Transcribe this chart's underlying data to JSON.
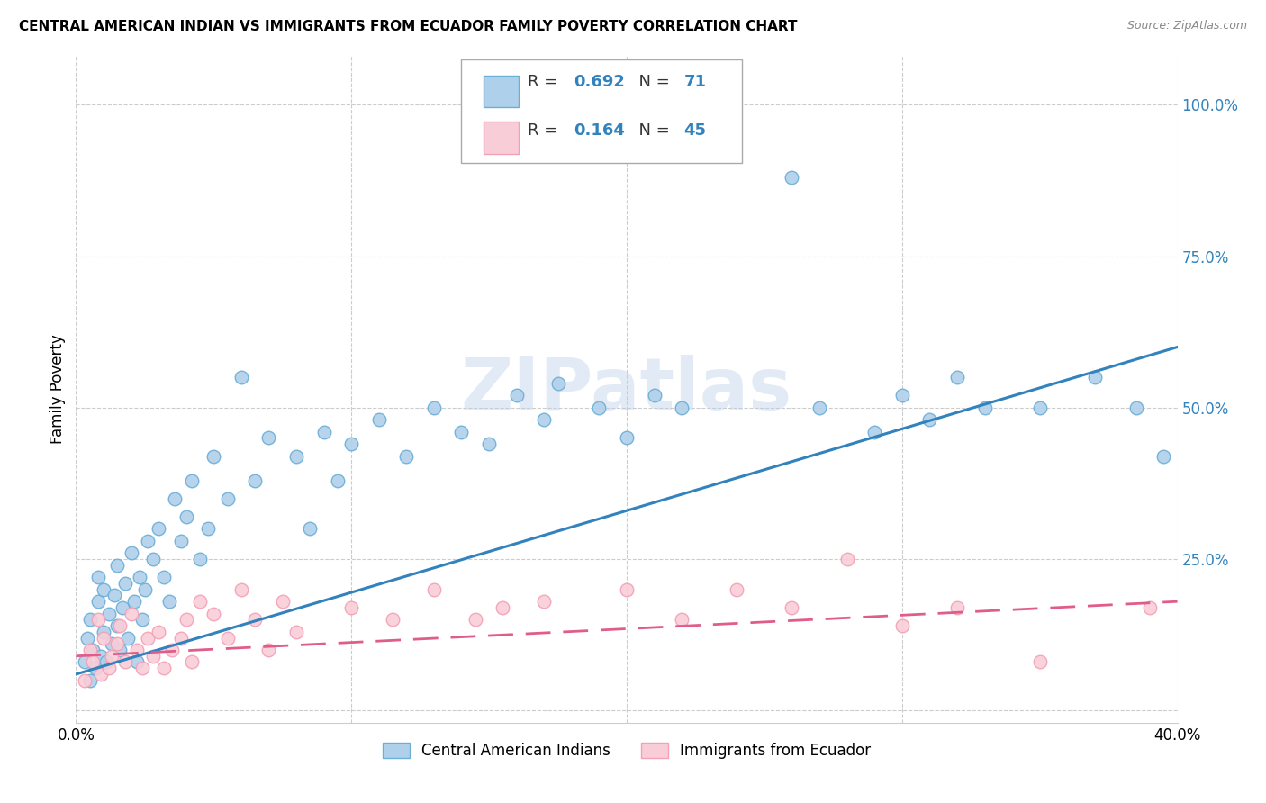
{
  "title": "CENTRAL AMERICAN INDIAN VS IMMIGRANTS FROM ECUADOR FAMILY POVERTY CORRELATION CHART",
  "source": "Source: ZipAtlas.com",
  "ylabel": "Family Poverty",
  "xlim": [
    0.0,
    0.4
  ],
  "ylim": [
    -0.02,
    1.08
  ],
  "blue_color": "#6baed6",
  "blue_fill": "#afd0ea",
  "pink_color": "#f4a0b5",
  "pink_fill": "#f9cdd8",
  "line_blue": "#3182bd",
  "line_pink": "#e05c8a",
  "R_blue": 0.692,
  "N_blue": 71,
  "R_pink": 0.164,
  "N_pink": 45,
  "legend_label_blue": "Central American Indians",
  "legend_label_pink": "Immigrants from Ecuador",
  "watermark": "ZIPatlas",
  "background_color": "#ffffff",
  "grid_color": "#cccccc",
  "blue_x": [
    0.003,
    0.004,
    0.005,
    0.005,
    0.006,
    0.007,
    0.008,
    0.008,
    0.009,
    0.01,
    0.01,
    0.011,
    0.012,
    0.013,
    0.014,
    0.015,
    0.015,
    0.016,
    0.017,
    0.018,
    0.019,
    0.02,
    0.021,
    0.022,
    0.023,
    0.024,
    0.025,
    0.026,
    0.028,
    0.03,
    0.032,
    0.034,
    0.036,
    0.038,
    0.04,
    0.042,
    0.045,
    0.048,
    0.05,
    0.055,
    0.06,
    0.065,
    0.07,
    0.08,
    0.085,
    0.09,
    0.095,
    0.1,
    0.11,
    0.12,
    0.13,
    0.14,
    0.15,
    0.16,
    0.17,
    0.175,
    0.19,
    0.2,
    0.21,
    0.22,
    0.26,
    0.27,
    0.29,
    0.3,
    0.31,
    0.32,
    0.33,
    0.35,
    0.37,
    0.385,
    0.395
  ],
  "blue_y": [
    0.08,
    0.12,
    0.05,
    0.15,
    0.1,
    0.07,
    0.18,
    0.22,
    0.09,
    0.13,
    0.2,
    0.08,
    0.16,
    0.11,
    0.19,
    0.14,
    0.24,
    0.1,
    0.17,
    0.21,
    0.12,
    0.26,
    0.18,
    0.08,
    0.22,
    0.15,
    0.2,
    0.28,
    0.25,
    0.3,
    0.22,
    0.18,
    0.35,
    0.28,
    0.32,
    0.38,
    0.25,
    0.3,
    0.42,
    0.35,
    0.55,
    0.38,
    0.45,
    0.42,
    0.3,
    0.46,
    0.38,
    0.44,
    0.48,
    0.42,
    0.5,
    0.46,
    0.44,
    0.52,
    0.48,
    0.54,
    0.5,
    0.45,
    0.52,
    0.5,
    0.88,
    0.5,
    0.46,
    0.52,
    0.48,
    0.55,
    0.5,
    0.5,
    0.55,
    0.5,
    0.42
  ],
  "pink_x": [
    0.003,
    0.005,
    0.006,
    0.008,
    0.009,
    0.01,
    0.012,
    0.013,
    0.015,
    0.016,
    0.018,
    0.02,
    0.022,
    0.024,
    0.026,
    0.028,
    0.03,
    0.032,
    0.035,
    0.038,
    0.04,
    0.042,
    0.045,
    0.05,
    0.055,
    0.06,
    0.065,
    0.07,
    0.075,
    0.08,
    0.1,
    0.115,
    0.13,
    0.145,
    0.155,
    0.17,
    0.2,
    0.22,
    0.24,
    0.26,
    0.28,
    0.3,
    0.32,
    0.35,
    0.39
  ],
  "pink_y": [
    0.05,
    0.1,
    0.08,
    0.15,
    0.06,
    0.12,
    0.07,
    0.09,
    0.11,
    0.14,
    0.08,
    0.16,
    0.1,
    0.07,
    0.12,
    0.09,
    0.13,
    0.07,
    0.1,
    0.12,
    0.15,
    0.08,
    0.18,
    0.16,
    0.12,
    0.2,
    0.15,
    0.1,
    0.18,
    0.13,
    0.17,
    0.15,
    0.2,
    0.15,
    0.17,
    0.18,
    0.2,
    0.15,
    0.2,
    0.17,
    0.25,
    0.14,
    0.17,
    0.08,
    0.17
  ],
  "blue_line_x": [
    0.0,
    0.4
  ],
  "blue_line_y": [
    0.06,
    0.6
  ],
  "pink_line_x": [
    0.0,
    0.4
  ],
  "pink_line_y": [
    0.09,
    0.18
  ]
}
